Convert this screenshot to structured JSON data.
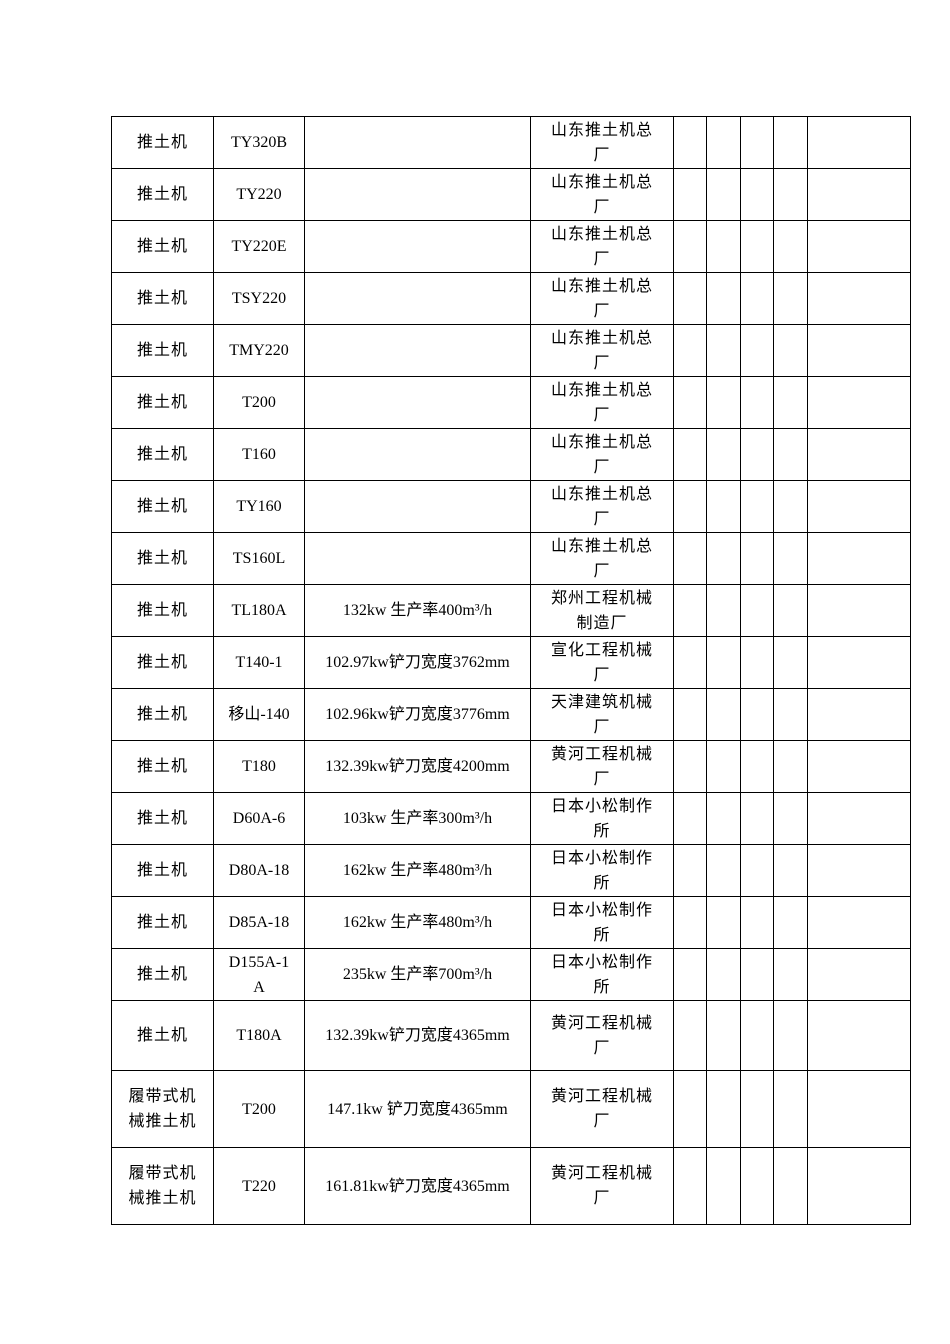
{
  "table": {
    "rows": [
      {
        "type": "推土机",
        "model": "TY320B",
        "spec": "",
        "maker": "山东推土机总厂"
      },
      {
        "type": "推土机",
        "model": "TY220",
        "spec": "",
        "maker": "山东推土机总厂"
      },
      {
        "type": "推土机",
        "model": "TY220E",
        "spec": "",
        "maker": "山东推土机总厂"
      },
      {
        "type": "推土机",
        "model": "TSY220",
        "spec": "",
        "maker": "山东推土机总厂"
      },
      {
        "type": "推土机",
        "model": "TMY220",
        "spec": "",
        "maker": "山东推土机总厂"
      },
      {
        "type": "推土机",
        "model": "T200",
        "spec": "",
        "maker": "山东推土机总厂"
      },
      {
        "type": "推土机",
        "model": "T160",
        "spec": "",
        "maker": "山东推土机总厂"
      },
      {
        "type": "推土机",
        "model": "TY160",
        "spec": "",
        "maker": "山东推土机总厂"
      },
      {
        "type": "推土机",
        "model": "TS160L",
        "spec": "",
        "maker": "山东推土机总厂"
      },
      {
        "type": "推土机",
        "model": "TL180A",
        "spec": "132kw 生产率400m³/h",
        "maker": "郑州工程机械制造厂"
      },
      {
        "type": "推土机",
        "model": "T140-1",
        "spec": "102.97kw铲刀宽度3762mm",
        "maker": "宣化工程机械厂"
      },
      {
        "type": "推土机",
        "model": "移山-140",
        "spec": "102.96kw铲刀宽度3776mm",
        "maker": "天津建筑机械厂"
      },
      {
        "type": "推土机",
        "model": "T180",
        "spec": "132.39kw铲刀宽度4200mm",
        "maker": "黄河工程机械厂"
      },
      {
        "type": "推土机",
        "model": "D60A-6",
        "spec": "103kw 生产率300m³/h",
        "maker": "日本小松制作所"
      },
      {
        "type": "推土机",
        "model": "D80A-18",
        "spec": "162kw 生产率480m³/h",
        "maker": "日本小松制作所"
      },
      {
        "type": "推土机",
        "model": "D85A-18",
        "spec": "162kw 生产率480m³/h",
        "maker": "日本小松制作所"
      },
      {
        "type": "推土机",
        "model": "D155A-1A",
        "spec": "235kw 生产率700m³/h",
        "maker": "日本小松制作所"
      },
      {
        "type": "推土机",
        "model": "T180A",
        "spec": "132.39kw铲刀宽度4365mm",
        "maker": "黄河工程机械厂"
      },
      {
        "type": "履带式机械推土机",
        "model": "T200",
        "spec": "147.1kw  铲刀宽度4365mm",
        "maker": "黄河工程机械厂"
      },
      {
        "type": "履带式机械推土机",
        "model": "T220",
        "spec": "161.81kw铲刀宽度4365mm",
        "maker": "黄河工程机械厂"
      }
    ]
  }
}
